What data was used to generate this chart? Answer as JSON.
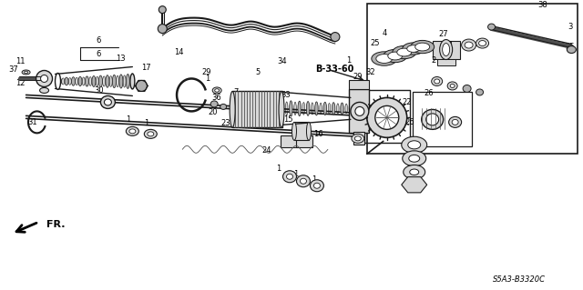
{
  "bg_color": "#ffffff",
  "fig_width": 6.4,
  "fig_height": 3.19,
  "dpi": 100,
  "diagram_code": "S5A3-B3320C",
  "ref_label": "B-33-60",
  "fr_label": "FR.",
  "line_color": "#1a1a1a",
  "gray_fill": "#b0b0b0",
  "light_gray": "#d8d8d8",
  "dark_gray": "#505050"
}
